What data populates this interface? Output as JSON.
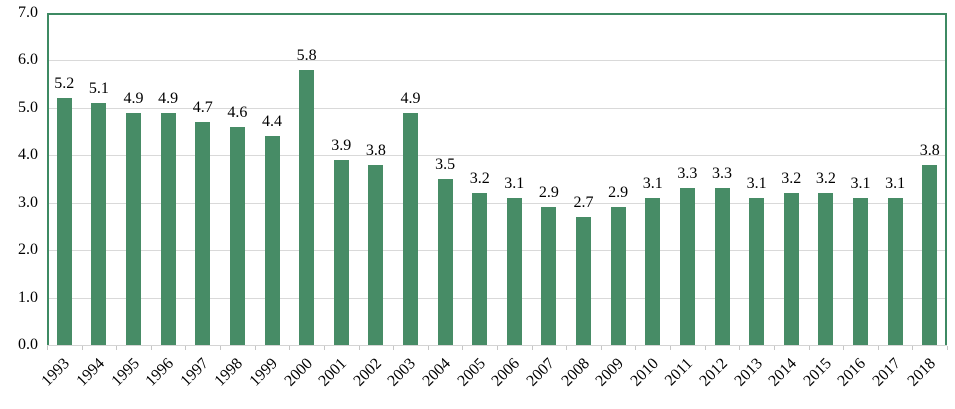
{
  "chart_data": {
    "type": "bar",
    "title": "",
    "xlabel": "",
    "ylabel": "",
    "categories": [
      "1993",
      "1994",
      "1995",
      "1996",
      "1997",
      "1998",
      "1999",
      "2000",
      "2001",
      "2002",
      "2003",
      "2004",
      "2005",
      "2006",
      "2007",
      "2008",
      "2009",
      "2010",
      "2011",
      "2012",
      "2013",
      "2014",
      "2015",
      "2016",
      "2017",
      "2018"
    ],
    "values": [
      5.2,
      5.1,
      4.9,
      4.9,
      4.7,
      4.6,
      4.4,
      5.8,
      3.9,
      3.8,
      4.9,
      3.5,
      3.2,
      3.1,
      2.9,
      2.7,
      2.9,
      3.1,
      3.3,
      3.3,
      3.1,
      3.2,
      3.2,
      3.1,
      3.1,
      3.8
    ],
    "data_labels": [
      "5.2",
      "5.1",
      "4.9",
      "4.9",
      "4.7",
      "4.6",
      "4.4",
      "5.8",
      "3.9",
      "3.8",
      "4.9",
      "3.5",
      "3.2",
      "3.1",
      "2.9",
      "2.7",
      "2.9",
      "3.1",
      "3.3",
      "3.3",
      "3.1",
      "3.2",
      "3.2",
      "3.1",
      "3.1",
      "3.8"
    ],
    "ylim": [
      0,
      7
    ],
    "ytick_labels": [
      "0.0",
      "1.0",
      "2.0",
      "3.0",
      "4.0",
      "5.0",
      "6.0",
      "7.0"
    ],
    "grid": true,
    "legend": false,
    "x_label_rotation_deg": 45,
    "colors": {
      "bar": "#478C66",
      "plot_border": "#3E8A63",
      "gridline": "#D9D9D9",
      "axis_line": "#D4D4D4",
      "tick": "#C6C6C6",
      "text": "#000000",
      "background": "#FFFFFF"
    }
  }
}
